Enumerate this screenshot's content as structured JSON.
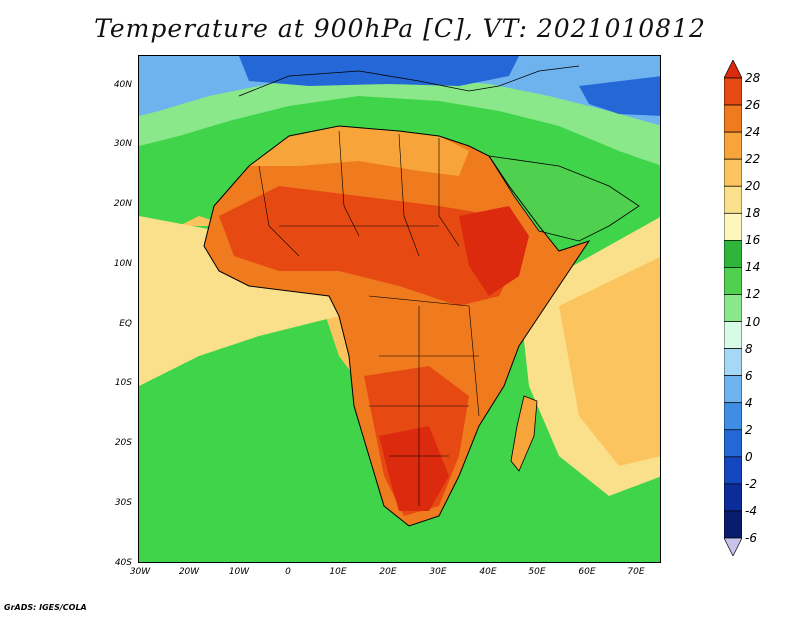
{
  "title": "Temperature at 900hPa [C], VT: 2021010812",
  "footer": "GrADS: IGES/COLA",
  "map": {
    "lat_labels": [
      "40N",
      "30N",
      "20N",
      "10N",
      "EQ",
      "10S",
      "20S",
      "30S",
      "40S"
    ],
    "lon_labels": [
      "30W",
      "20W",
      "10W",
      "0",
      "10E",
      "20E",
      "30E",
      "40E",
      "50E",
      "60E",
      "70E"
    ],
    "extent": {
      "lon_min": -30,
      "lon_max": 75,
      "lat_min": -40,
      "lat_max": 45
    },
    "ocean_color": "#3fd44a",
    "land_color": "#e87818"
  },
  "colorbar": {
    "levels": [
      "28",
      "26",
      "24",
      "22",
      "20",
      "18",
      "16",
      "14",
      "12",
      "10",
      "8",
      "6",
      "4",
      "2",
      "0",
      "-2",
      "-4",
      "-6"
    ],
    "colors": [
      "#dc2a0f",
      "#e64a12",
      "#f07a1e",
      "#f7a43a",
      "#fbc45e",
      "#fbe08c",
      "#fdf7bd",
      "#2fb53c",
      "#4fd04e",
      "#8ae88a",
      "#d8fbe8",
      "#a6d8f6",
      "#6fb3ee",
      "#3f8ee6",
      "#2468d8",
      "#1446c0",
      "#0c2c9a",
      "#0a1c6e",
      "#c9c4ec"
    ]
  }
}
